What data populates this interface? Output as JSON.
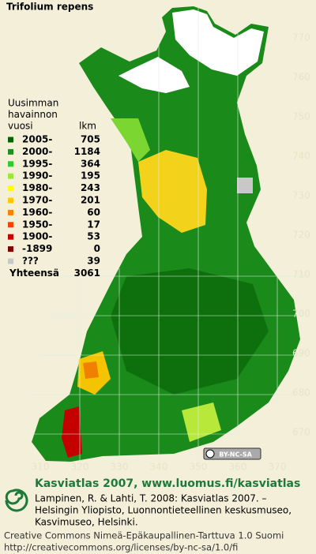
{
  "title": "Trifolium repens",
  "legend": {
    "heading": [
      "Uusimman",
      "havainnon",
      "vuosi"
    ],
    "count_heading": "lkm",
    "rows": [
      {
        "label": "2005-",
        "count": 705,
        "color": "#006400"
      },
      {
        "label": "2000-",
        "count": 1184,
        "color": "#1f8f1f"
      },
      {
        "label": "1995-",
        "count": 364,
        "color": "#2ecc2e"
      },
      {
        "label": "1990-",
        "count": 195,
        "color": "#9be83a"
      },
      {
        "label": "1980-",
        "count": 243,
        "color": "#ffff00"
      },
      {
        "label": "1970-",
        "count": 201,
        "color": "#ffc800"
      },
      {
        "label": "1960-",
        "count": 60,
        "color": "#ff8000"
      },
      {
        "label": "1950-",
        "count": 17,
        "color": "#ff4000"
      },
      {
        "label": "1900-",
        "count": 53,
        "color": "#cc0000"
      },
      {
        "label": "-1899",
        "count": 0,
        "color": "#800000"
      },
      {
        "label": "???",
        "count": 39,
        "color": "#c8c8c8"
      }
    ],
    "total_label": "Yhteensä",
    "total": 3061
  },
  "grid": {
    "yticks": [
      770,
      760,
      750,
      740,
      730,
      720,
      710,
      700,
      690,
      680,
      670
    ],
    "xticks": [
      310,
      320,
      330,
      340,
      350,
      360,
      370
    ]
  },
  "license_badge": "BY-NC-SA",
  "footer": {
    "site": "Kasviatlas 2007, www.luomus.fi/kasviatlas",
    "citation": [
      "Lampinen, R. & Lahti, T. 2008: Kasviatlas 2007. –",
      "Helsingin Yliopisto, Luonnontieteellinen keskusmuseo,",
      "Kasvimuseo, Helsinki."
    ],
    "license": [
      "Creative Commons Nimeä-Epäkaupallinen-Tarttuva 1.0 Suomi",
      "http://creativecommons.org/licenses/by-nc-sa/1.0/fi"
    ]
  }
}
